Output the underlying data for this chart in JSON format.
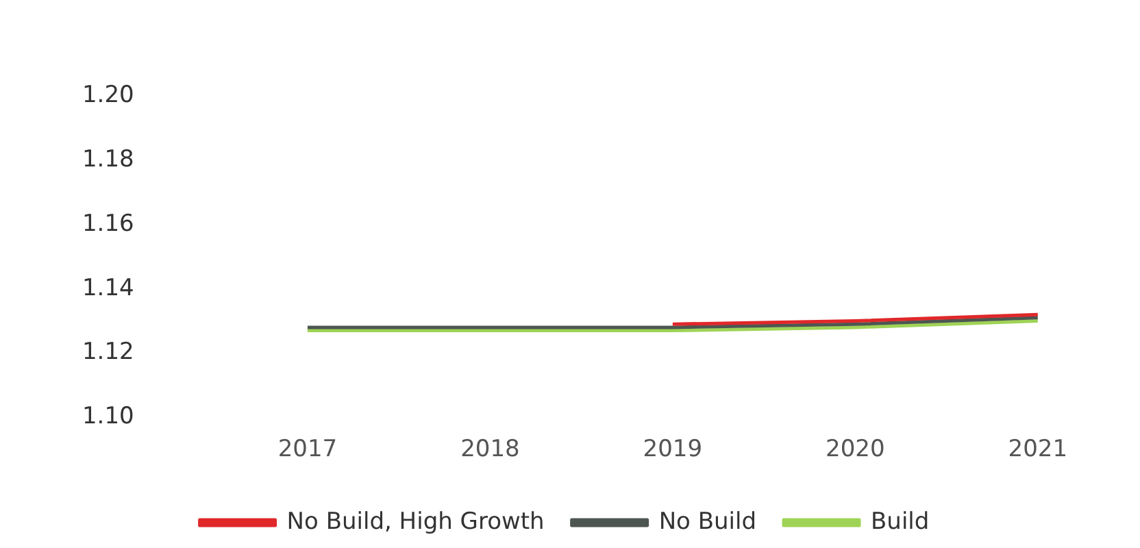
{
  "chart_data": {
    "type": "line",
    "categories": [
      "2017",
      "2018",
      "2019",
      "2020",
      "2021"
    ],
    "series": [
      {
        "name": "No Build, High Growth",
        "color": "#e0282a",
        "values": [
          null,
          null,
          1.129,
          1.13,
          1.132
        ]
      },
      {
        "name": "No Build",
        "color": "#4d5651",
        "values": [
          1.128,
          1.128,
          1.128,
          1.129,
          1.131
        ]
      },
      {
        "name": "Build",
        "color": "#9fd356",
        "values": [
          1.127,
          1.127,
          1.127,
          1.128,
          1.13
        ]
      }
    ],
    "ylim": [
      1.1,
      1.2
    ],
    "yticks": [
      {
        "value": 1.1,
        "label": "1.10"
      },
      {
        "value": 1.12,
        "label": "1.12"
      },
      {
        "value": 1.14,
        "label": "1.14"
      },
      {
        "value": 1.16,
        "label": "1.16"
      },
      {
        "value": 1.18,
        "label": "1.18"
      },
      {
        "value": 1.2,
        "label": "1.20"
      }
    ],
    "grid": false,
    "legend": "bottom",
    "marker": "none",
    "line_style": "solid"
  }
}
